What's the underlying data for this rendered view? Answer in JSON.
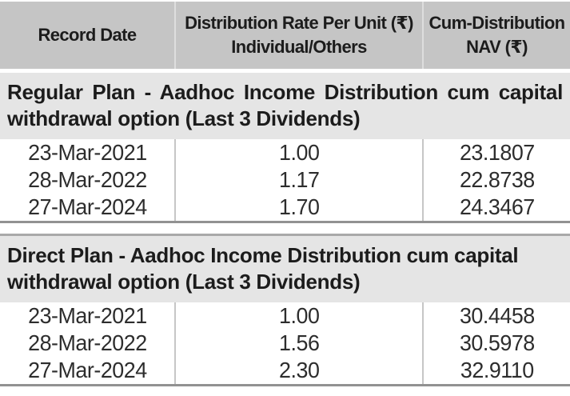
{
  "table": {
    "columns": [
      {
        "line1": "Record Date",
        "line2": ""
      },
      {
        "line1": "Distribution Rate Per Unit  (₹)",
        "line2": "Individual/Others"
      },
      {
        "line1": "Cum-Distribution",
        "line2": "NAV (₹)"
      }
    ],
    "sections": [
      {
        "title": "Regular Plan - Aadhoc Income Distribution cum capital withdrawal option (Last 3 Dividends)",
        "rows": [
          {
            "record_date": "23-Mar-2021",
            "rate": "1.00",
            "nav": "23.1807"
          },
          {
            "record_date": "28-Mar-2022",
            "rate": "1.17",
            "nav": "22.8738"
          },
          {
            "record_date": "27-Mar-2024",
            "rate": "1.70",
            "nav": "24.3467"
          }
        ]
      },
      {
        "title": "Direct Plan - Aadhoc Income Distribution cum capital withdrawal option (Last 3 Dividends)",
        "rows": [
          {
            "record_date": "23-Mar-2021",
            "rate": "1.00",
            "nav": "30.4458"
          },
          {
            "record_date": "28-Mar-2022",
            "rate": "1.56",
            "nav": "30.5978"
          },
          {
            "record_date": "27-Mar-2024",
            "rate": "2.30",
            "nav": "32.9110"
          }
        ]
      }
    ]
  },
  "colors": {
    "header_bg": "#c5c5c5",
    "section_bg": "#e5e5e5",
    "rule_dark": "#929292",
    "rule_mid": "#a9a9a9",
    "divider_light": "#dedede",
    "divider_data": "#c6c6c6",
    "text": "#1c1c1c"
  }
}
